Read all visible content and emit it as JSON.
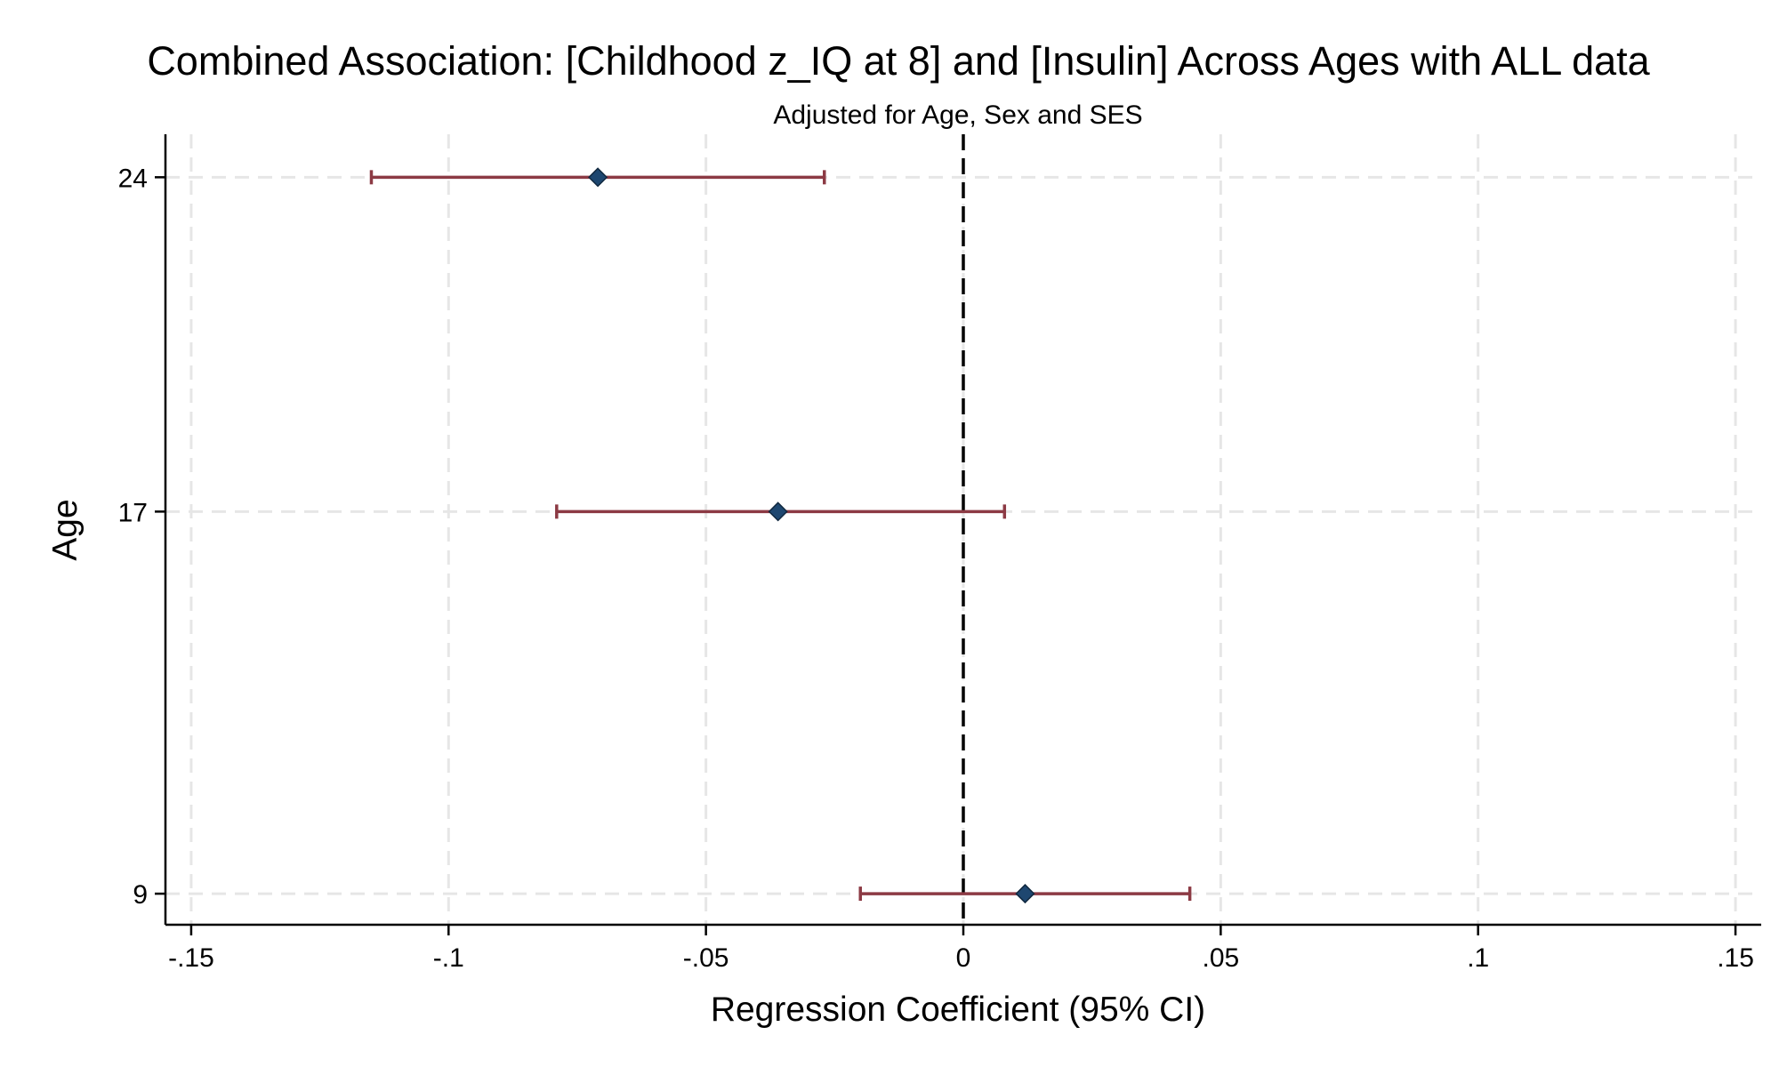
{
  "chart_data": {
    "type": "scatter",
    "subtype": "coefficient-plot-with-95ci",
    "title": "Combined Association: [Childhood z_IQ at 8] and [Insulin] Across Ages with ALL data",
    "subtitle": "Adjusted for Age, Sex and SES",
    "xlabel": "Regression Coefficient (95% CI)",
    "ylabel": "Age",
    "xlim": [
      -0.155,
      0.155
    ],
    "ylim": [
      8.35,
      24.9
    ],
    "x_ticks": [
      -0.15,
      -0.1,
      -0.05,
      0,
      0.05,
      0.1,
      0.15
    ],
    "x_tick_labels": [
      "-.15",
      "-.1",
      "-.05",
      "0",
      ".05",
      ".1",
      ".15"
    ],
    "y_ticks": [
      9,
      17,
      24
    ],
    "y_tick_labels": [
      "9",
      "17",
      "24"
    ],
    "grid": true,
    "reference_line_x": 0,
    "points": [
      {
        "age": 24,
        "estimate": -0.071,
        "ci_low": -0.115,
        "ci_high": -0.027
      },
      {
        "age": 17,
        "estimate": -0.036,
        "ci_low": -0.079,
        "ci_high": 0.008
      },
      {
        "age": 9,
        "estimate": 0.012,
        "ci_low": -0.02,
        "ci_high": 0.044
      }
    ],
    "colors": {
      "marker": "#1e4770",
      "ci_line": "#8c3a44",
      "grid": "#e6e6e6",
      "axis": "#000000",
      "reference_line": "#000000"
    }
  }
}
